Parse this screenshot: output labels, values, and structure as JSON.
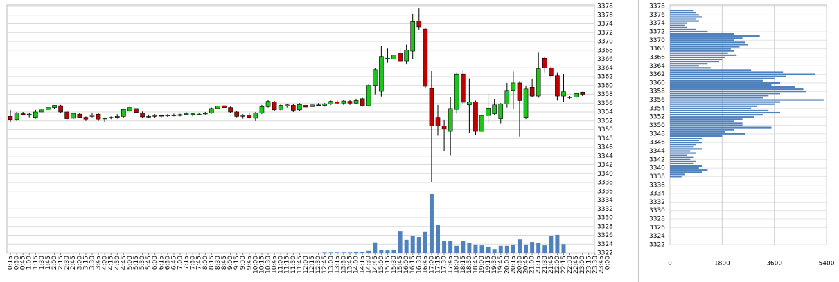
{
  "chart_data": [
    {
      "type": "candlestick",
      "categories": [
        "0:15",
        "0:30",
        "0:45",
        "1:00",
        "1:15",
        "1:30",
        "1:45",
        "2:00",
        "2:15",
        "2:30",
        "2:45",
        "3:00",
        "3:15",
        "3:30",
        "3:45",
        "4:00",
        "4:15",
        "4:30",
        "4:45",
        "5:00",
        "5:15",
        "5:30",
        "5:45",
        "6:00",
        "6:15",
        "6:30",
        "6:45",
        "7:00",
        "7:15",
        "7:30",
        "7:45",
        "8:00",
        "8:15",
        "8:30",
        "8:45",
        "9:00",
        "9:15",
        "9:30",
        "9:45",
        "10:00",
        "10:15",
        "10:30",
        "10:45",
        "11:00",
        "11:15",
        "11:30",
        "11:45",
        "12:00",
        "12:15",
        "12:30",
        "12:45",
        "13:00",
        "13:15",
        "13:30",
        "13:45",
        "14:00",
        "14:15",
        "14:30",
        "14:45",
        "15:00",
        "15:15",
        "15:30",
        "15:45",
        "16:00",
        "16:15",
        "16:30",
        "16:45",
        "17:00",
        "17:15",
        "17:30",
        "17:45",
        "18:00",
        "18:15",
        "18:30",
        "18:45",
        "19:00",
        "19:15",
        "19:30",
        "19:45",
        "20:00",
        "20:15",
        "20:30",
        "20:45",
        "21:00",
        "21:15",
        "21:30",
        "21:45",
        "22:00",
        "22:15",
        "22:30",
        "22:45",
        "23:00",
        "23:15",
        "23:30",
        "23:45",
        "0:00"
      ],
      "ohlc": [
        [
          3353,
          3354.5,
          3351.8,
          3352.3
        ],
        [
          3352.3,
          3354,
          3352,
          3353.8
        ],
        [
          3353.6,
          3354,
          3353.2,
          3353.4
        ],
        [
          3353.4,
          3353.8,
          3352.8,
          3353.5
        ],
        [
          3352.8,
          3354.5,
          3352.5,
          3354
        ],
        [
          3354,
          3354.8,
          3353.8,
          3354.5
        ],
        [
          3354.6,
          3355.2,
          3354.2,
          3355
        ],
        [
          3355,
          3355.5,
          3354.8,
          3355.5
        ],
        [
          3355.4,
          3355.6,
          3353.8,
          3354
        ],
        [
          3354,
          3354.4,
          3352,
          3352.5
        ],
        [
          3352.6,
          3353.8,
          3352.4,
          3353.6
        ],
        [
          3353.5,
          3353.8,
          3352.6,
          3352.8
        ],
        [
          3352.8,
          3353,
          3352,
          3352.4
        ],
        [
          3353,
          3353.8,
          3352.8,
          3353.3
        ],
        [
          3353.5,
          3353.8,
          3352,
          3352.4
        ],
        [
          3352.5,
          3352.8,
          3351.8,
          3352.6
        ],
        [
          3352.7,
          3353,
          3352.4,
          3352.8
        ],
        [
          3352.8,
          3353.5,
          3352.5,
          3353
        ],
        [
          3353,
          3354.8,
          3352.8,
          3354.6
        ],
        [
          3354.3,
          3355.3,
          3354,
          3355
        ],
        [
          3354.8,
          3355,
          3353.6,
          3353.9
        ],
        [
          3353.8,
          3354.1,
          3352.6,
          3352.9
        ],
        [
          3353,
          3353.4,
          3352.6,
          3353
        ],
        [
          3353,
          3353.5,
          3352.7,
          3353.2
        ],
        [
          3353.2,
          3353.4,
          3352.8,
          3353.1
        ],
        [
          3353.1,
          3353.5,
          3352.9,
          3353.3
        ],
        [
          3353.3,
          3353.6,
          3353,
          3353.2
        ],
        [
          3353.2,
          3353.6,
          3353,
          3353.4
        ],
        [
          3353.4,
          3353.9,
          3353.2,
          3353.6
        ],
        [
          3353.4,
          3353.8,
          3353,
          3353.6
        ],
        [
          3353.5,
          3353.8,
          3353.3,
          3353.5
        ],
        [
          3353.6,
          3354,
          3353.4,
          3353.7
        ],
        [
          3353.8,
          3355,
          3353.6,
          3354.8
        ],
        [
          3354.8,
          3355.6,
          3354.6,
          3355.3
        ],
        [
          3355.4,
          3355.6,
          3354.8,
          3355
        ],
        [
          3355,
          3355.2,
          3353.8,
          3354
        ],
        [
          3354,
          3354.2,
          3352.8,
          3353
        ],
        [
          3353,
          3353.5,
          3352.5,
          3353.2
        ],
        [
          3353.3,
          3353.8,
          3352.5,
          3352.8
        ],
        [
          3352.6,
          3354,
          3352,
          3353.8
        ],
        [
          3353.8,
          3355.6,
          3353.5,
          3355.2
        ],
        [
          3355.2,
          3356.7,
          3355,
          3356.4
        ],
        [
          3356.3,
          3356.5,
          3354.2,
          3354.5
        ],
        [
          3354.6,
          3355.8,
          3354.4,
          3355.5
        ],
        [
          3355.3,
          3355.8,
          3355,
          3355.6
        ],
        [
          3355.5,
          3355.8,
          3354,
          3354.4
        ],
        [
          3354.5,
          3356,
          3354.3,
          3355.7
        ],
        [
          3355.5,
          3355.8,
          3354.8,
          3355.1
        ],
        [
          3355.2,
          3355.9,
          3355,
          3355.6
        ],
        [
          3355.6,
          3356,
          3355.3,
          3355.5
        ],
        [
          3355.5,
          3356,
          3355.2,
          3355.8
        ],
        [
          3355.8,
          3356.6,
          3355.6,
          3356.4
        ],
        [
          3356.3,
          3356.6,
          3355.8,
          3356
        ],
        [
          3356,
          3356.8,
          3355.6,
          3356.5
        ],
        [
          3356.4,
          3356.8,
          3355.6,
          3356
        ],
        [
          3356,
          3357,
          3355.8,
          3356.6
        ],
        [
          3357,
          3357.2,
          3355.2,
          3355.4
        ],
        [
          3355.4,
          3360.4,
          3355.2,
          3360
        ],
        [
          3360,
          3364,
          3358,
          3363.6
        ],
        [
          3358.7,
          3369,
          3357.5,
          3366.6
        ],
        [
          3366,
          3368.4,
          3365.2,
          3366.2
        ],
        [
          3366,
          3368,
          3365.5,
          3366.9
        ],
        [
          3367.4,
          3368.6,
          3365.4,
          3365.6
        ],
        [
          3365.6,
          3369.3,
          3364.8,
          3368
        ],
        [
          3367.8,
          3376.3,
          3366,
          3374.5
        ],
        [
          3374.6,
          3377.5,
          3372.6,
          3373.3
        ],
        [
          3372.8,
          3373,
          3359.3,
          3359.8
        ],
        [
          3359.3,
          3363.3,
          3338,
          3350.8
        ],
        [
          3352.8,
          3355.6,
          3348.6,
          3350.8
        ],
        [
          3350.8,
          3352.3,
          3345.2,
          3350.2
        ],
        [
          3349.6,
          3357.3,
          3344.2,
          3354.8
        ],
        [
          3354.6,
          3363,
          3353.6,
          3362.6
        ],
        [
          3362.6,
          3363.5,
          3355.8,
          3356.2
        ],
        [
          3355.6,
          3361.6,
          3349.3,
          3356.3
        ],
        [
          3356.3,
          3356.6,
          3348.8,
          3349.6
        ],
        [
          3349.6,
          3353.8,
          3349,
          3353.2
        ],
        [
          3353.2,
          3358,
          3351.6,
          3354.9
        ],
        [
          3353.6,
          3357,
          3353.2,
          3355.6
        ],
        [
          3352.5,
          3356,
          3351.4,
          3355.8
        ],
        [
          3355.8,
          3360.6,
          3355,
          3358.9
        ],
        [
          3358.9,
          3363.2,
          3354.6,
          3360.6
        ],
        [
          3360.6,
          3361,
          3348.4,
          3356.6
        ],
        [
          3352.8,
          3359.8,
          3352.4,
          3359.2
        ],
        [
          3359.6,
          3361.4,
          3357.4,
          3357.6
        ],
        [
          3357.6,
          3367.6,
          3357.2,
          3363.8
        ],
        [
          3366.2,
          3366.6,
          3363,
          3364
        ],
        [
          3364,
          3364.3,
          3361.6,
          3362.2
        ],
        [
          3362.2,
          3363,
          3356.6,
          3357.6
        ],
        [
          3357.6,
          3362.6,
          3356.3,
          3358.6
        ],
        [
          3357.3,
          3357.6,
          3357,
          3357.4
        ],
        [
          3357.4,
          3358.4,
          3357.1,
          3358.2
        ],
        [
          3358.5,
          3358.6,
          3357.6,
          3358
        ],
        null,
        null,
        null,
        null
      ],
      "volume": [
        0,
        0,
        0,
        0,
        0,
        0,
        0,
        0,
        0,
        0,
        0,
        0,
        0,
        0,
        0,
        0,
        0,
        0,
        0,
        0,
        0,
        0,
        0,
        0,
        0,
        0,
        0,
        0,
        0,
        0,
        0,
        0,
        0,
        0,
        0,
        0,
        0,
        0,
        0,
        0,
        0,
        0,
        0,
        0,
        0,
        0,
        0,
        0,
        0,
        0,
        0.1,
        0.1,
        0.1,
        0.1,
        0.1,
        0.2,
        0.3,
        0.5,
        2.4,
        0.8,
        0.6,
        0.8,
        5,
        3,
        3.8,
        3.6,
        4.9,
        13.5,
        6.3,
        2.7,
        2.7,
        1.6,
        2.7,
        2.2,
        1.9,
        1.7,
        1.4,
        0.9,
        1.6,
        1.6,
        1.9,
        3.1,
        1.9,
        2.5,
        2.2,
        1.7,
        3.8,
        4.1,
        2,
        0,
        0,
        0,
        0,
        0,
        0,
        0
      ],
      "up_color": "#1fc41f",
      "down_color": "#c00000",
      "volume_color": "#4f81bd",
      "ylim": [
        3322,
        3378
      ],
      "yticks": [
        3322,
        3324,
        3326,
        3328,
        3330,
        3332,
        3334,
        3336,
        3338,
        3340,
        3342,
        3344,
        3346,
        3348,
        3350,
        3352,
        3354,
        3356,
        3358,
        3360,
        3362,
        3364,
        3366,
        3368,
        3370,
        3372,
        3374,
        3376,
        3378
      ],
      "grid": true
    },
    {
      "type": "hbar",
      "levels": [
        3377,
        3376.5,
        3376,
        3375.5,
        3375,
        3374.5,
        3374,
        3373.5,
        3373,
        3372.5,
        3372,
        3371.5,
        3371,
        3370.5,
        3370,
        3369.5,
        3369,
        3368.5,
        3368,
        3367.5,
        3367,
        3366.5,
        3366,
        3365.5,
        3365,
        3364.5,
        3364,
        3363.5,
        3363,
        3362.5,
        3362,
        3361.5,
        3361,
        3360.5,
        3360,
        3359.5,
        3359,
        3358.5,
        3358,
        3357.5,
        3357,
        3356.5,
        3356,
        3355.5,
        3355,
        3354.5,
        3354,
        3353.5,
        3353,
        3352.5,
        3352,
        3351.5,
        3351,
        3350.5,
        3350,
        3349.5,
        3349,
        3348.5,
        3348,
        3347.5,
        3347,
        3346.5,
        3346,
        3345.5,
        3345,
        3344.5,
        3344,
        3343.5,
        3343,
        3342.5,
        3342,
        3341.5,
        3341,
        3340.5,
        3340,
        3339.5,
        3339,
        3338.5,
        3338
      ],
      "values": [
        800,
        900,
        1000,
        1100,
        900,
        1000,
        600,
        500,
        600,
        900,
        1300,
        2200,
        3100,
        2500,
        2200,
        2600,
        2700,
        2400,
        2100,
        2200,
        2000,
        2300,
        1900,
        1800,
        1700,
        1300,
        1000,
        1400,
        2800,
        3900,
        5000,
        4000,
        3600,
        3200,
        3800,
        3500,
        4300,
        4600,
        4700,
        3800,
        3400,
        3200,
        5300,
        3800,
        3600,
        3000,
        2800,
        3400,
        3800,
        3200,
        2900,
        2500,
        2200,
        2500,
        2500,
        3500,
        2200,
        1900,
        2600,
        1800,
        1100,
        1000,
        1100,
        900,
        800,
        1100,
        700,
        900,
        600,
        800,
        700,
        900,
        800,
        1100,
        1000,
        1300,
        1100,
        500,
        400
      ],
      "color": "#4f81bd",
      "xlim": [
        0,
        5400
      ],
      "xticks": [
        0,
        1800,
        3600,
        5400
      ],
      "ylim": [
        3322,
        3378
      ],
      "yticks": [
        3322,
        3324,
        3326,
        3328,
        3330,
        3332,
        3334,
        3336,
        3338,
        3340,
        3342,
        3344,
        3346,
        3348,
        3350,
        3352,
        3354,
        3356,
        3358,
        3360,
        3362,
        3364,
        3366,
        3368,
        3370,
        3372,
        3374,
        3376,
        3378
      ],
      "grid": true
    }
  ]
}
